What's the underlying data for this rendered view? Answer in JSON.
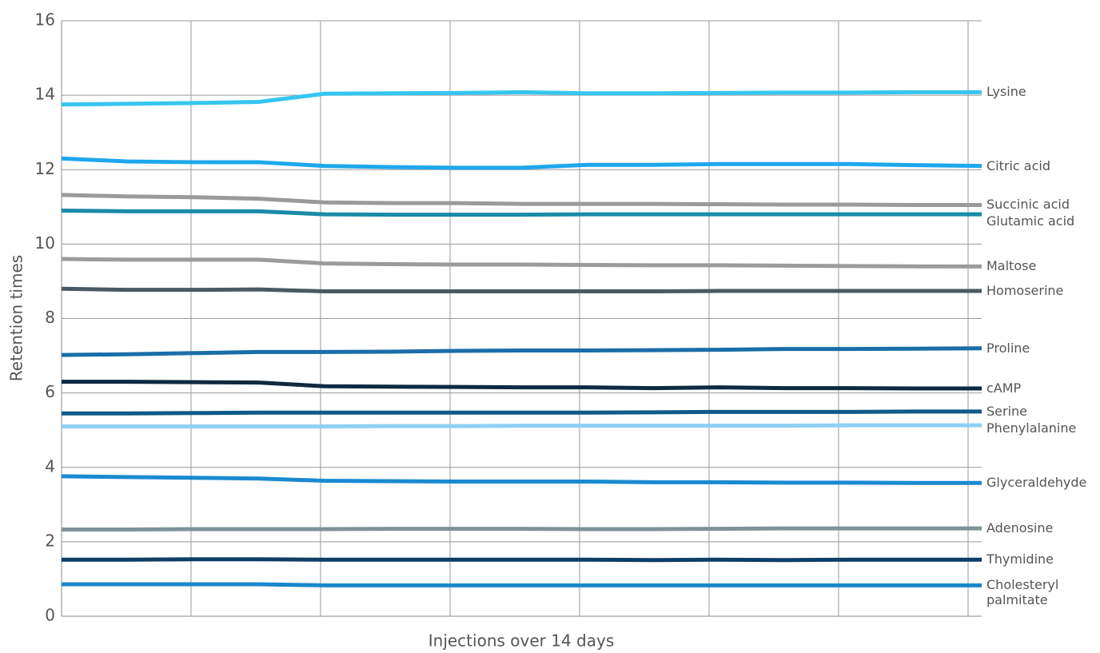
{
  "chart_data": {
    "type": "line",
    "x_label": "Injections over 14 days",
    "y_label": "Retention times",
    "categories": [
      null,
      null,
      null,
      null,
      null,
      null,
      null,
      null,
      null,
      null,
      null,
      null,
      null,
      null,
      null
    ],
    "ylim": [
      0,
      16
    ],
    "yticks": [
      0,
      2,
      4,
      6,
      8,
      10,
      12,
      14,
      16
    ],
    "grid": true,
    "series": [
      {
        "name": "Lysine",
        "color": "#35c6f0",
        "values": [
          13.75,
          13.77,
          13.79,
          13.82,
          14.04,
          14.05,
          14.06,
          14.08,
          14.05,
          14.05,
          14.06,
          14.07,
          14.07,
          14.08,
          14.08
        ]
      },
      {
        "name": "Citric acid",
        "color": "#1ea8ec",
        "values": [
          12.3,
          12.22,
          12.2,
          12.2,
          12.1,
          12.07,
          12.05,
          12.05,
          12.13,
          12.13,
          12.15,
          12.15,
          12.15,
          12.12,
          12.1
        ]
      },
      {
        "name": "Succinic acid",
        "color": "#9a9a9a",
        "values": [
          11.32,
          11.28,
          11.26,
          11.22,
          11.12,
          11.1,
          11.1,
          11.08,
          11.08,
          11.08,
          11.07,
          11.06,
          11.06,
          11.05,
          11.05
        ]
      },
      {
        "name": "Glutamic acid",
        "color": "#1a8aa8",
        "values": [
          10.9,
          10.88,
          10.88,
          10.88,
          10.8,
          10.79,
          10.79,
          10.79,
          10.8,
          10.8,
          10.8,
          10.8,
          10.8,
          10.8,
          10.8
        ]
      },
      {
        "name": "Maltose",
        "color": "#9b9b9b",
        "values": [
          9.6,
          9.58,
          9.58,
          9.58,
          9.48,
          9.46,
          9.45,
          9.45,
          9.44,
          9.43,
          9.43,
          9.42,
          9.41,
          9.4,
          9.4
        ]
      },
      {
        "name": "Homoserine",
        "color": "#4a5a62",
        "values": [
          8.8,
          8.77,
          8.77,
          8.78,
          8.73,
          8.73,
          8.73,
          8.73,
          8.73,
          8.73,
          8.74,
          8.74,
          8.74,
          8.74,
          8.74
        ]
      },
      {
        "name": "Proline",
        "color": "#1a6ea8",
        "values": [
          7.02,
          7.04,
          7.07,
          7.1,
          7.1,
          7.11,
          7.13,
          7.14,
          7.14,
          7.15,
          7.16,
          7.18,
          7.18,
          7.19,
          7.2
        ]
      },
      {
        "name": "cAMP",
        "color": "#0f2a40",
        "values": [
          6.3,
          6.3,
          6.29,
          6.28,
          6.18,
          6.17,
          6.16,
          6.15,
          6.15,
          6.13,
          6.15,
          6.13,
          6.13,
          6.12,
          6.12
        ]
      },
      {
        "name": "Serine",
        "color": "#0e5a8a",
        "values": [
          5.45,
          5.45,
          5.46,
          5.47,
          5.47,
          5.47,
          5.47,
          5.47,
          5.47,
          5.48,
          5.49,
          5.49,
          5.49,
          5.5,
          5.5
        ]
      },
      {
        "name": "Phenylalanine",
        "color": "#8fd0f5",
        "values": [
          5.1,
          5.1,
          5.1,
          5.1,
          5.1,
          5.11,
          5.11,
          5.12,
          5.12,
          5.12,
          5.12,
          5.12,
          5.13,
          5.13,
          5.13
        ]
      },
      {
        "name": "Glyceraldehyde",
        "color": "#1a8ad0",
        "values": [
          3.76,
          3.74,
          3.72,
          3.7,
          3.64,
          3.63,
          3.62,
          3.62,
          3.62,
          3.6,
          3.6,
          3.59,
          3.59,
          3.58,
          3.58
        ]
      },
      {
        "name": "Adenosine",
        "color": "#7f9298",
        "values": [
          2.33,
          2.33,
          2.34,
          2.34,
          2.34,
          2.35,
          2.35,
          2.35,
          2.34,
          2.34,
          2.35,
          2.36,
          2.36,
          2.36,
          2.36
        ]
      },
      {
        "name": "Thymidine",
        "color": "#0d3e66",
        "values": [
          1.52,
          1.52,
          1.53,
          1.53,
          1.52,
          1.52,
          1.52,
          1.52,
          1.52,
          1.51,
          1.52,
          1.51,
          1.52,
          1.52,
          1.52
        ]
      },
      {
        "name": "Cholesteryl palmitate",
        "color": "#1a88cc",
        "values": [
          0.86,
          0.86,
          0.86,
          0.86,
          0.83,
          0.83,
          0.83,
          0.83,
          0.83,
          0.83,
          0.83,
          0.83,
          0.83,
          0.83,
          0.83
        ]
      }
    ]
  }
}
